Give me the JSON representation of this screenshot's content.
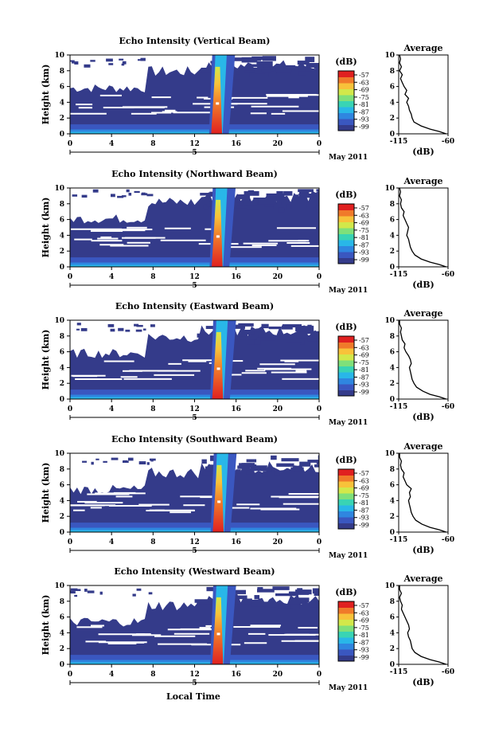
{
  "xlabel": "Local Time",
  "date_label": "May 2011",
  "colorbar_unit": "(dB)",
  "colorbar_ticks": [
    "-57",
    "-63",
    "-69",
    "-75",
    "-81",
    "-87",
    "-93",
    "-99"
  ],
  "colors": {
    "background_low": "#343b8a",
    "scale": [
      "#343b8a",
      "#3a57c0",
      "#2f86e0",
      "#29b7e8",
      "#39d4b4",
      "#7fe07a",
      "#d2e84a",
      "#f8c23a",
      "#f07a2a",
      "#e02020"
    ]
  },
  "chart_data": [
    {
      "type": "heatmap",
      "title": "Echo Intensity (Vertical Beam)",
      "ylabel": "Height (km)",
      "xlim": [
        0,
        24
      ],
      "ylim": [
        0,
        10
      ],
      "xticks": [
        "0",
        "4",
        "8",
        "12",
        "16",
        "20",
        "0"
      ],
      "yticks": [
        "0",
        "2",
        "4",
        "6",
        "8",
        "10"
      ],
      "day_tick": "5",
      "color_range_db": [
        -99,
        -57
      ],
      "average": {
        "title": "Average",
        "xlabel": "(dB)",
        "xlim": [
          -115,
          -60
        ],
        "xticks": [
          "-115",
          "-60"
        ],
        "height_km": [
          0.0,
          0.3,
          0.6,
          1.0,
          1.5,
          2.0,
          2.5,
          3.0,
          3.5,
          4.0,
          4.5,
          5.0,
          5.5,
          6.0,
          6.5,
          7.0,
          7.5,
          8.0,
          8.5,
          9.0,
          9.5,
          10.0
        ],
        "db": [
          -62,
          -70,
          -80,
          -90,
          -98,
          -100,
          -101,
          -103,
          -104,
          -106,
          -104,
          -108,
          -106,
          -109,
          -111,
          -113,
          -111,
          -114,
          -112,
          -114,
          -113,
          -114
        ]
      }
    },
    {
      "type": "heatmap",
      "title": "Echo Intensity (Northward Beam)",
      "ylabel": "Height (km)",
      "xlim": [
        0,
        24
      ],
      "ylim": [
        0,
        10
      ],
      "xticks": [
        "0",
        "4",
        "8",
        "12",
        "16",
        "20",
        "0"
      ],
      "yticks": [
        "0",
        "2",
        "4",
        "6",
        "8",
        "10"
      ],
      "day_tick": "5",
      "color_range_db": [
        -99,
        -57
      ],
      "average": {
        "title": "Average",
        "xlabel": "(dB)",
        "xlim": [
          -115,
          -60
        ],
        "xticks": [
          "-115",
          "-60"
        ],
        "height_km": [
          0.0,
          0.3,
          0.6,
          1.0,
          1.5,
          2.0,
          2.5,
          3.0,
          3.5,
          4.0,
          4.5,
          5.0,
          5.5,
          6.0,
          6.5,
          7.0,
          7.5,
          8.0,
          8.5,
          9.0,
          9.5,
          10.0
        ],
        "db": [
          -62,
          -70,
          -80,
          -90,
          -97,
          -100,
          -102,
          -103,
          -104,
          -106,
          -105,
          -104,
          -106,
          -108,
          -110,
          -109,
          -112,
          -113,
          -112,
          -114,
          -113,
          -114
        ]
      }
    },
    {
      "type": "heatmap",
      "title": "Echo Intensity (Eastward Beam)",
      "ylabel": "Height (km)",
      "xlim": [
        0,
        24
      ],
      "ylim": [
        0,
        10
      ],
      "xticks": [
        "0",
        "4",
        "8",
        "12",
        "16",
        "20",
        "0"
      ],
      "yticks": [
        "0",
        "2",
        "4",
        "6",
        "8",
        "10"
      ],
      "day_tick": "5",
      "color_range_db": [
        -99,
        -57
      ],
      "average": {
        "title": "Average",
        "xlabel": "(dB)",
        "xlim": [
          -115,
          -60
        ],
        "xticks": [
          "-115",
          "-60"
        ],
        "height_km": [
          0.0,
          0.3,
          0.6,
          1.0,
          1.5,
          2.0,
          2.5,
          3.0,
          3.5,
          4.0,
          4.5,
          5.0,
          5.5,
          6.0,
          6.5,
          7.0,
          7.5,
          8.0,
          8.5,
          9.0,
          9.5,
          10.0
        ],
        "db": [
          -62,
          -70,
          -80,
          -88,
          -95,
          -98,
          -100,
          -101,
          -102,
          -103,
          -101,
          -102,
          -104,
          -107,
          -109,
          -108,
          -111,
          -112,
          -113,
          -112,
          -114,
          -114
        ]
      }
    },
    {
      "type": "heatmap",
      "title": "Echo Intensity (Southward Beam)",
      "ylabel": "Height (km)",
      "xlim": [
        0,
        24
      ],
      "ylim": [
        0,
        10
      ],
      "xticks": [
        "0",
        "4",
        "8",
        "12",
        "16",
        "20",
        "0"
      ],
      "yticks": [
        "0",
        "2",
        "4",
        "6",
        "8",
        "10"
      ],
      "day_tick": "5",
      "color_range_db": [
        -99,
        -57
      ],
      "average": {
        "title": "Average",
        "xlabel": "(dB)",
        "xlim": [
          -115,
          -60
        ],
        "xticks": [
          "-115",
          "-60"
        ],
        "height_km": [
          0.0,
          0.3,
          0.6,
          1.0,
          1.5,
          2.0,
          2.5,
          3.0,
          3.5,
          4.0,
          4.5,
          5.0,
          5.5,
          6.0,
          6.5,
          7.0,
          7.5,
          8.0,
          8.5,
          9.0,
          9.5,
          10.0
        ],
        "db": [
          -62,
          -70,
          -80,
          -89,
          -96,
          -99,
          -101,
          -102,
          -103,
          -104,
          -102,
          -103,
          -101,
          -106,
          -108,
          -110,
          -109,
          -112,
          -113,
          -112,
          -114,
          -114
        ]
      }
    },
    {
      "type": "heatmap",
      "title": "Echo Intensity (Westward Beam)",
      "ylabel": "Height (km)",
      "xlim": [
        0,
        24
      ],
      "ylim": [
        0,
        10
      ],
      "xticks": [
        "0",
        "4",
        "8",
        "12",
        "16",
        "20",
        "0"
      ],
      "yticks": [
        "0",
        "2",
        "4",
        "6",
        "8",
        "10"
      ],
      "day_tick": "5",
      "color_range_db": [
        -99,
        -57
      ],
      "average": {
        "title": "Average",
        "xlabel": "(dB)",
        "xlim": [
          -115,
          -60
        ],
        "xticks": [
          "-115",
          "-60"
        ],
        "height_km": [
          0.0,
          0.3,
          0.6,
          1.0,
          1.5,
          2.0,
          2.5,
          3.0,
          3.5,
          4.0,
          4.5,
          5.0,
          5.5,
          6.0,
          6.5,
          7.0,
          7.5,
          8.0,
          8.5,
          9.0,
          9.5,
          10.0
        ],
        "db": [
          -62,
          -70,
          -80,
          -90,
          -97,
          -100,
          -101,
          -102,
          -104,
          -105,
          -103,
          -104,
          -106,
          -108,
          -110,
          -112,
          -111,
          -113,
          -114,
          -112,
          -114,
          -114
        ]
      }
    }
  ]
}
